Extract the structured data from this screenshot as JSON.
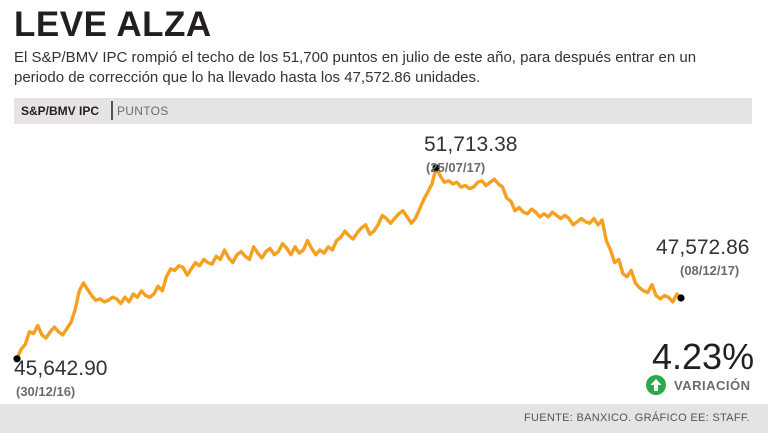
{
  "header": {
    "title": "LEVE ALZA",
    "subtitle": "El S&P/BMV IPC rompió el techo de los 51,700 puntos en julio de este año, para después entrar en un periodo de corrección que lo ha llevado hasta los 47,572.86 unidades."
  },
  "band": {
    "index_name": "S&P/BMV IPC",
    "unit": "PUNTOS"
  },
  "variation": {
    "value": "4.23%",
    "label": "VARIACIÓN",
    "icon": "up-arrow-icon"
  },
  "footer": {
    "source": "FUENTE: BANXICO. GRÁFICO EE: STAFF."
  },
  "colors": {
    "line": "#f5a020",
    "accent_green": "#2ea84a",
    "band": "#e6e4e2"
  },
  "chart_data": {
    "type": "line",
    "title": "S&P/BMV IPC",
    "ylabel": "Puntos",
    "x_range": [
      "30/12/16",
      "08/12/17"
    ],
    "ylim": [
      45000,
      52500
    ],
    "grid": false,
    "series": [
      {
        "name": "S&P/BMV IPC",
        "values": [
          45642.9,
          45950,
          46100,
          46500,
          46450,
          46700,
          46400,
          46300,
          46500,
          46650,
          46500,
          46400,
          46600,
          46800,
          47200,
          47800,
          48050,
          47850,
          47650,
          47500,
          47550,
          47450,
          47500,
          47600,
          47550,
          47400,
          47600,
          47450,
          47700,
          47600,
          47800,
          47650,
          47600,
          47700,
          47950,
          47800,
          48250,
          48500,
          48450,
          48600,
          48550,
          48300,
          48500,
          48700,
          48600,
          48800,
          48700,
          48650,
          48900,
          48800,
          49100,
          48850,
          48700,
          48950,
          49050,
          48900,
          48800,
          49200,
          49000,
          48850,
          49050,
          49150,
          48950,
          49050,
          49300,
          49150,
          48950,
          49200,
          49000,
          49100,
          49400,
          49150,
          48950,
          49100,
          49000,
          49200,
          49100,
          49400,
          49500,
          49700,
          49550,
          49450,
          49650,
          49800,
          49900,
          49600,
          49700,
          49900,
          50200,
          50100,
          49950,
          50100,
          50250,
          50350,
          50150,
          49950,
          50100,
          50400,
          50700,
          50950,
          51200,
          51713.38,
          51450,
          51250,
          51300,
          51200,
          51250,
          51100,
          51150,
          51050,
          51100,
          51250,
          51300,
          51150,
          51250,
          51350,
          51200,
          51100,
          50750,
          50650,
          50350,
          50450,
          50300,
          50250,
          50400,
          50300,
          50150,
          50250,
          50150,
          50300,
          50200,
          50100,
          50200,
          50100,
          49900,
          50000,
          50100,
          50000,
          49950,
          50100,
          49900,
          50050,
          49400,
          49100,
          48700,
          48800,
          48350,
          48250,
          48450,
          48050,
          47900,
          47800,
          47750,
          48000,
          47650,
          47550,
          47650,
          47600,
          47450,
          47700,
          47572.86
        ]
      }
    ],
    "annotations": [
      {
        "label": "45,642.90",
        "date": "(30/12/16)",
        "value": 45642.9
      },
      {
        "label": "51,713.38",
        "date": "(25/07/17)",
        "value": 51713.38
      },
      {
        "label": "47,572.86",
        "date": "(08/12/17)",
        "value": 47572.86
      }
    ]
  }
}
